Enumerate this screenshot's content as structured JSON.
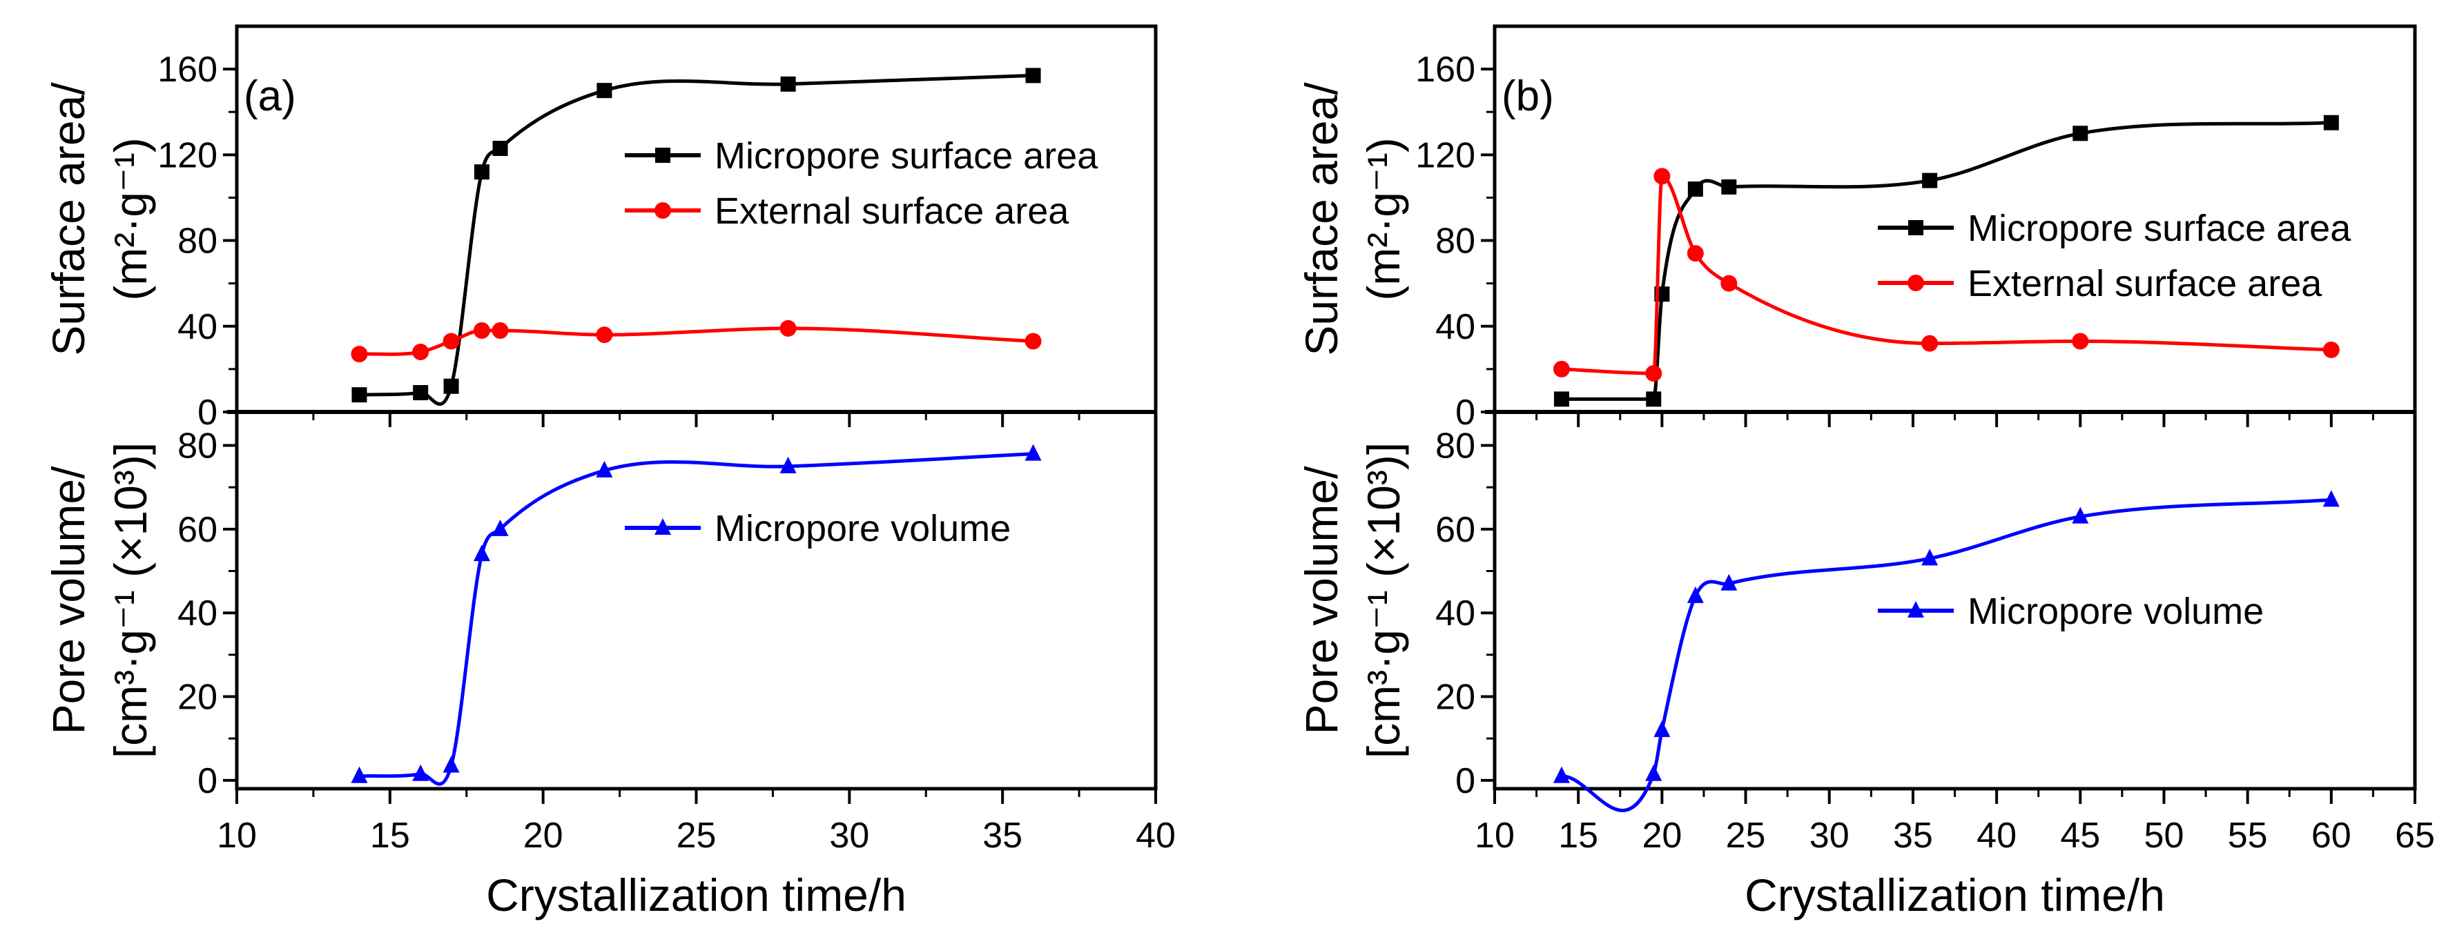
{
  "chart_data": [
    {
      "panel": "(a)",
      "type": "line",
      "xlabel": "Crystallization time/h",
      "xlim": [
        10,
        40
      ],
      "xticks": [
        10,
        15,
        20,
        25,
        30,
        35,
        40
      ],
      "top": {
        "ylabel_main": "Surface area/",
        "ylabel_unit": "(m²·g⁻¹)",
        "ylim": [
          0,
          180
        ],
        "yticks": [
          0,
          40,
          80,
          120,
          160
        ],
        "legend_position": "top-right",
        "series": [
          {
            "name": "Micropore surface area",
            "color": "#000000",
            "marker": "square",
            "x": [
              14,
              16,
              17,
              18,
              18.6,
              22,
              28,
              36
            ],
            "y": [
              8,
              9,
              12,
              112,
              123,
              150,
              153,
              157
            ]
          },
          {
            "name": "External surface area",
            "color": "#ff0000",
            "marker": "circle",
            "x": [
              14,
              16,
              17,
              18,
              18.6,
              22,
              28,
              36
            ],
            "y": [
              27,
              28,
              33,
              38,
              38,
              36,
              39,
              33
            ]
          }
        ]
      },
      "bottom": {
        "ylabel_main": "Pore volume/",
        "ylabel_unit": "[cm³·g⁻¹ (×10³)]",
        "ylim": [
          -2,
          88
        ],
        "yticks": [
          0,
          20,
          40,
          60,
          80
        ],
        "legend_position": "center-right",
        "series": [
          {
            "name": "Micropore volume",
            "color": "#0000ff",
            "marker": "triangle",
            "x": [
              14,
              16,
              17,
              18,
              18.6,
              22,
              28,
              36
            ],
            "y": [
              1,
              1.5,
              3.5,
              54,
              60,
              74,
              75,
              78
            ]
          }
        ]
      }
    },
    {
      "panel": "(b)",
      "type": "line",
      "xlabel": "Crystallization time/h",
      "xlim": [
        10,
        65
      ],
      "xticks": [
        10,
        15,
        20,
        25,
        30,
        35,
        40,
        45,
        50,
        55,
        60,
        65
      ],
      "top": {
        "ylabel_main": "Surface area/",
        "ylabel_unit": "(m²·g⁻¹)",
        "ylim": [
          0,
          180
        ],
        "yticks": [
          0,
          40,
          80,
          120,
          160
        ],
        "legend_position": "center-right",
        "series": [
          {
            "name": "Micropore surface area",
            "color": "#000000",
            "marker": "square",
            "x": [
              14,
              19.5,
              20,
              22,
              24,
              36,
              45,
              60
            ],
            "y": [
              6,
              6,
              55,
              104,
              105,
              108,
              130,
              135
            ]
          },
          {
            "name": "External surface area",
            "color": "#ff0000",
            "marker": "circle",
            "x": [
              14,
              19.5,
              20,
              22,
              24,
              36,
              45,
              60
            ],
            "y": [
              20,
              18,
              110,
              74,
              60,
              32,
              33,
              29
            ]
          }
        ]
      },
      "bottom": {
        "ylabel_main": "Pore volume/",
        "ylabel_unit": "[cm³·g⁻¹ (×10³)]",
        "ylim": [
          -2,
          88
        ],
        "yticks": [
          0,
          20,
          40,
          60,
          80
        ],
        "legend_position": "center-right",
        "series": [
          {
            "name": "Micropore volume",
            "color": "#0000ff",
            "marker": "triangle",
            "x": [
              14,
              19.5,
              20,
              22,
              24,
              36,
              45,
              60
            ],
            "y": [
              1,
              1.5,
              12,
              44,
              47,
              53,
              63,
              67
            ]
          }
        ]
      }
    }
  ]
}
